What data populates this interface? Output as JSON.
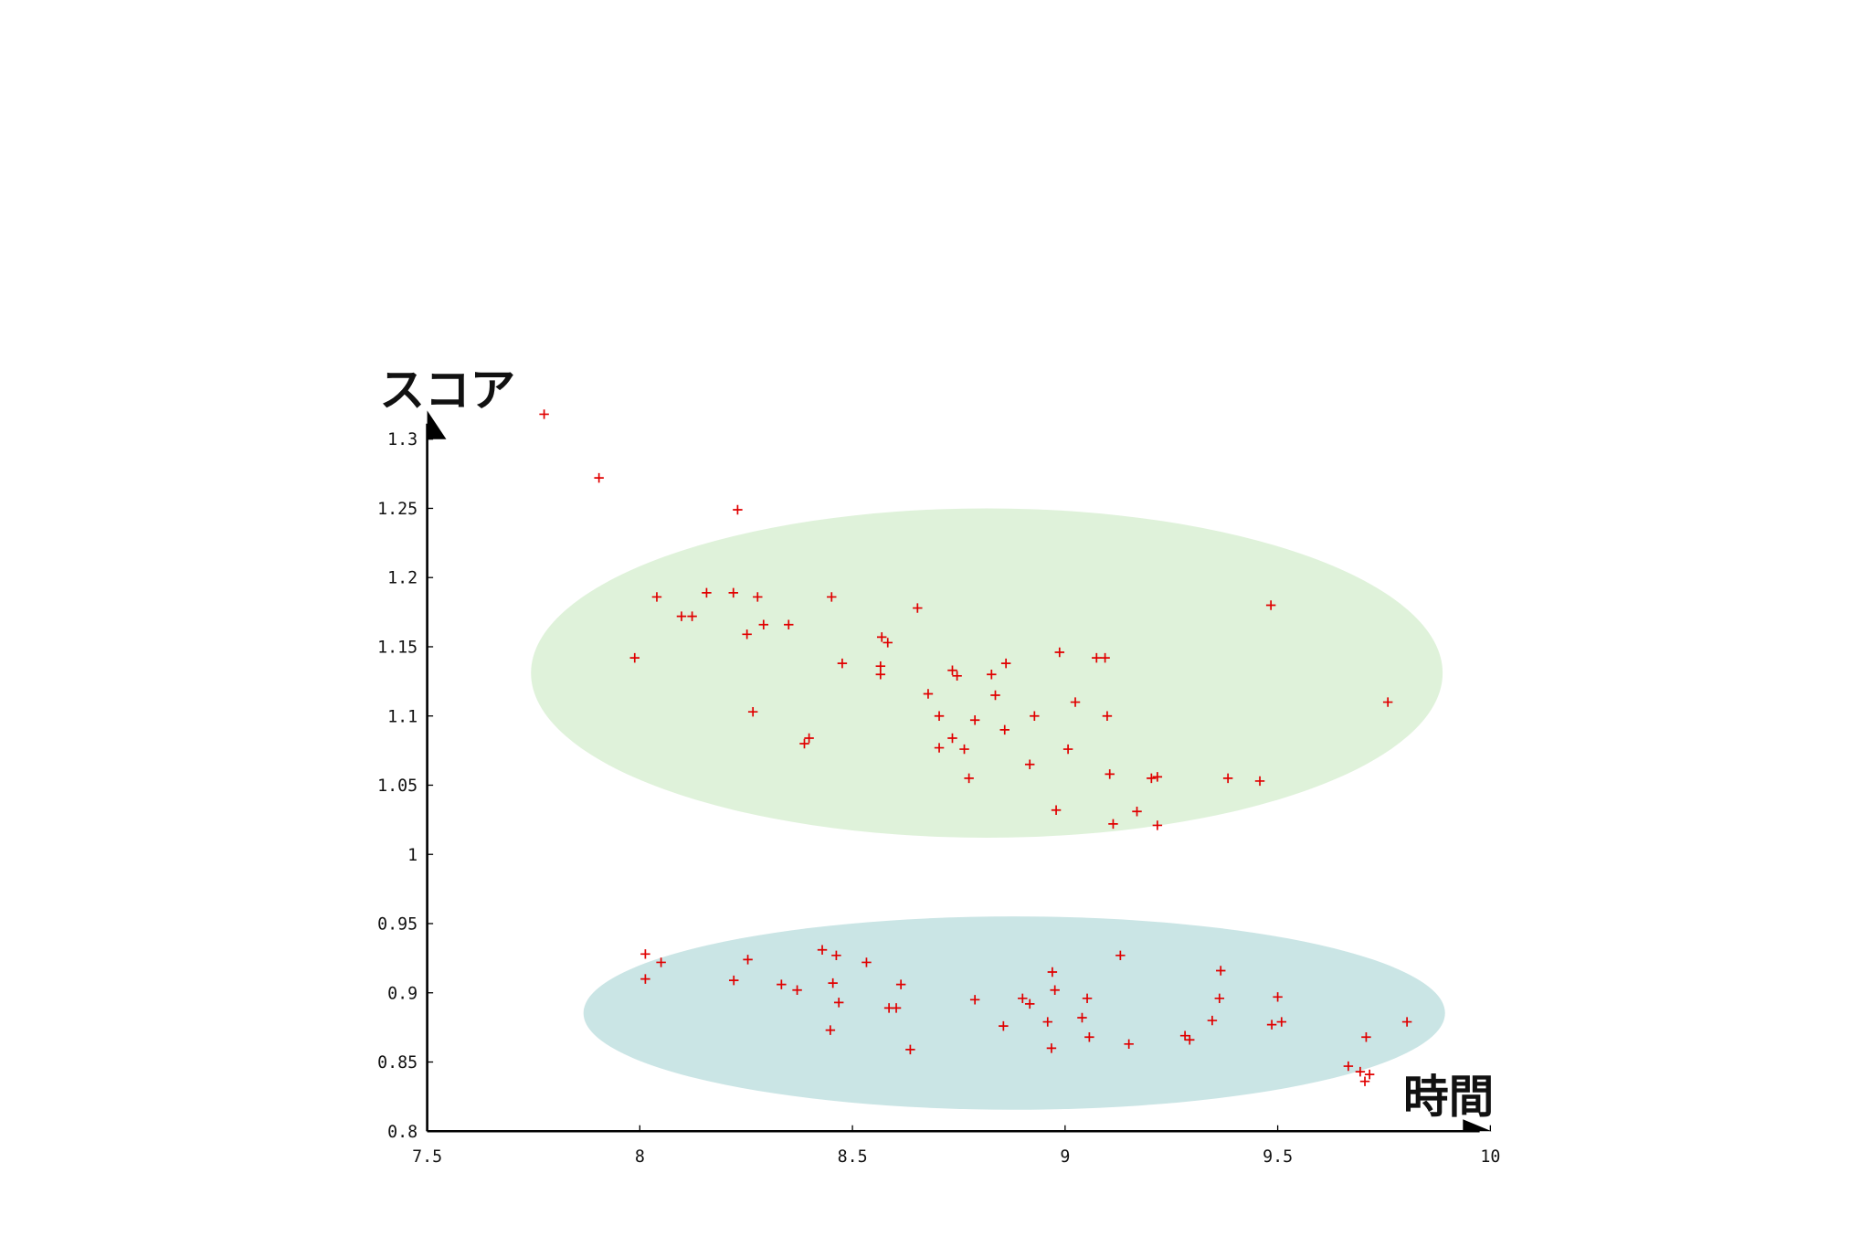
{
  "chart_data": {
    "type": "scatter",
    "x_label": "時間",
    "y_label": "スコア",
    "color": "#e00000",
    "x": [
      7.775,
      7.904,
      8.23,
      8.04,
      8.157,
      8.22,
      8.277,
      8.451,
      8.653,
      8.098,
      8.123,
      8.291,
      8.35,
      8.252,
      8.569,
      8.583,
      7.988,
      8.476,
      8.566,
      8.566,
      8.735,
      8.746,
      8.827,
      8.861,
      8.987,
      9.074,
      9.094,
      8.678,
      8.836,
      9.024,
      9.484,
      9.759,
      8.266,
      8.704,
      8.788,
      8.928,
      9.099,
      8.858,
      8.398,
      8.387,
      8.735,
      8.704,
      8.763,
      9.007,
      8.917,
      8.774,
      9.105,
      9.203,
      9.217,
      9.383,
      9.458,
      8.979,
      9.169,
      9.113,
      9.217,
      8.013,
      8.013,
      8.05,
      8.221,
      8.254,
      8.333,
      8.37,
      8.429,
      8.462,
      8.454,
      8.468,
      8.448,
      8.533,
      8.614,
      8.586,
      8.603,
      8.636,
      8.788,
      8.855,
      8.9,
      8.917,
      8.97,
      8.976,
      8.959,
      8.968,
      9.04,
      9.052,
      9.057,
      9.13,
      9.15,
      9.282,
      9.293,
      9.346,
      9.366,
      9.363,
      9.5,
      9.486,
      9.509,
      9.666,
      9.694,
      9.708,
      9.705,
      9.716,
      9.804
    ],
    "values": [
      1.318,
      1.272,
      1.249,
      1.186,
      1.189,
      1.189,
      1.186,
      1.186,
      1.178,
      1.172,
      1.172,
      1.166,
      1.166,
      1.159,
      1.157,
      1.153,
      1.142,
      1.138,
      1.136,
      1.13,
      1.133,
      1.129,
      1.13,
      1.138,
      1.146,
      1.142,
      1.142,
      1.116,
      1.115,
      1.11,
      1.18,
      1.11,
      1.103,
      1.1,
      1.097,
      1.1,
      1.1,
      1.09,
      1.084,
      1.08,
      1.084,
      1.077,
      1.076,
      1.076,
      1.065,
      1.055,
      1.058,
      1.055,
      1.056,
      1.055,
      1.053,
      1.032,
      1.031,
      1.022,
      1.021,
      0.928,
      0.91,
      0.922,
      0.909,
      0.924,
      0.906,
      0.902,
      0.931,
      0.927,
      0.907,
      0.893,
      0.873,
      0.922,
      0.906,
      0.889,
      0.889,
      0.859,
      0.895,
      0.876,
      0.896,
      0.892,
      0.915,
      0.902,
      0.879,
      0.86,
      0.882,
      0.896,
      0.868,
      0.927,
      0.863,
      0.869,
      0.866,
      0.88,
      0.916,
      0.896,
      0.897,
      0.877,
      0.879,
      0.847,
      0.843,
      0.868,
      0.836,
      0.841,
      0.879
    ],
    "xlim": [
      7.5,
      10
    ],
    "xticks": [
      7.5,
      8,
      8.5,
      9,
      9.5,
      10
    ],
    "ylim": [
      0.8,
      1.3
    ],
    "yticks": [
      0.8,
      0.85,
      0.9,
      0.95,
      1,
      1.05,
      1.1,
      1.15,
      1.2,
      1.25,
      1.3
    ]
  }
}
